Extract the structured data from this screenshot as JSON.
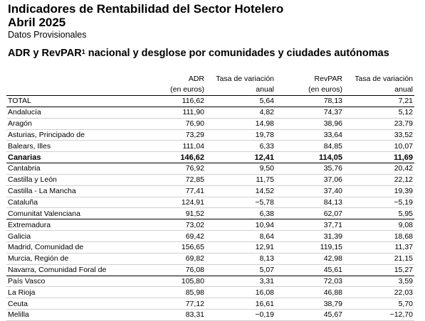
{
  "title_line1": "Indicadores de Rentabilidad del Sector Hotelero",
  "title_line2": "Abril 2025",
  "subtitle": "Datos Provisionales",
  "section_title_a": "ADR y RevPAR",
  "section_title_sup": "1",
  "section_title_b": " nacional y desglose por comunidades y ciudades autónomas",
  "headers": {
    "adr_1": "ADR",
    "adr_2": "(en euros)",
    "tasa1_1": "Tasa de variación",
    "tasa1_2": "anual",
    "revpar_1": "RevPAR",
    "revpar_2": "(en euros)",
    "tasa2_1": "Tasa de variación",
    "tasa2_2": "anual"
  },
  "rows": [
    {
      "name": "TOTAL",
      "adr": "116,62",
      "tasa_adr": "5,64",
      "revpar": "78,13",
      "tasa_revpar": "7,21",
      "bold": false,
      "sep": true
    },
    {
      "name": "Andalucía",
      "adr": "111,90",
      "tasa_adr": "4,82",
      "revpar": "74,37",
      "tasa_revpar": "5,12",
      "bold": false,
      "sep": false
    },
    {
      "name": "Aragón",
      "adr": "76,90",
      "tasa_adr": "14,98",
      "revpar": "38,96",
      "tasa_revpar": "23,79",
      "bold": false,
      "sep": false
    },
    {
      "name": "Asturias, Principado de",
      "adr": "73,29",
      "tasa_adr": "19,78",
      "revpar": "33,64",
      "tasa_revpar": "33,52",
      "bold": false,
      "sep": false
    },
    {
      "name": "Balears, Illes",
      "adr": "111,04",
      "tasa_adr": "6,33",
      "revpar": "84,85",
      "tasa_revpar": "10,07",
      "bold": false,
      "sep": false
    },
    {
      "name": "Canarias",
      "adr": "146,62",
      "tasa_adr": "12,41",
      "revpar": "114,05",
      "tasa_revpar": "11,69",
      "bold": true,
      "sep": true
    },
    {
      "name": "Cantabria",
      "adr": "76,92",
      "tasa_adr": "9,50",
      "revpar": "35,76",
      "tasa_revpar": "20,42",
      "bold": false,
      "sep": false
    },
    {
      "name": "Castilla y León",
      "adr": "72,85",
      "tasa_adr": "11,75",
      "revpar": "37,06",
      "tasa_revpar": "22,12",
      "bold": false,
      "sep": false
    },
    {
      "name": "Castilla - La Mancha",
      "adr": "77,41",
      "tasa_adr": "14,52",
      "revpar": "37,40",
      "tasa_revpar": "19,39",
      "bold": false,
      "sep": false
    },
    {
      "name": "Cataluña",
      "adr": "124,91",
      "tasa_adr": "-5,78",
      "revpar": "84,13",
      "tasa_revpar": "-5,19",
      "bold": false,
      "sep": false
    },
    {
      "name": "Comunitat Valenciana",
      "adr": "91,52",
      "tasa_adr": "6,38",
      "revpar": "62,07",
      "tasa_revpar": "5,95",
      "bold": false,
      "sep": true
    },
    {
      "name": "Extremadura",
      "adr": "73,02",
      "tasa_adr": "10,94",
      "revpar": "37,71",
      "tasa_revpar": "9,08",
      "bold": false,
      "sep": false
    },
    {
      "name": "Galicia",
      "adr": "69,42",
      "tasa_adr": "8,64",
      "revpar": "31,39",
      "tasa_revpar": "18,68",
      "bold": false,
      "sep": false
    },
    {
      "name": "Madrid, Comunidad de",
      "adr": "156,65",
      "tasa_adr": "12,91",
      "revpar": "119,15",
      "tasa_revpar": "11,37",
      "bold": false,
      "sep": false
    },
    {
      "name": "Murcia, Región de",
      "adr": "69,82",
      "tasa_adr": "8,13",
      "revpar": "42,98",
      "tasa_revpar": "21,15",
      "bold": false,
      "sep": false
    },
    {
      "name": "Navarra, Comunidad Foral de",
      "adr": "76,08",
      "tasa_adr": "5,07",
      "revpar": "45,61",
      "tasa_revpar": "15,27",
      "bold": false,
      "sep": true
    },
    {
      "name": "País Vasco",
      "adr": "105,80",
      "tasa_adr": "3,31",
      "revpar": "72,03",
      "tasa_revpar": "3,59",
      "bold": false,
      "sep": false
    },
    {
      "name": "La Rioja",
      "adr": "85,98",
      "tasa_adr": "16,08",
      "revpar": "46,88",
      "tasa_revpar": "22,03",
      "bold": false,
      "sep": false
    },
    {
      "name": "Ceuta",
      "adr": "77,12",
      "tasa_adr": "16,61",
      "revpar": "38,79",
      "tasa_revpar": "5,70",
      "bold": false,
      "sep": false
    },
    {
      "name": "Melilla",
      "adr": "83,31",
      "tasa_adr": "-0,19",
      "revpar": "45,67",
      "tasa_revpar": "-12,70",
      "bold": false,
      "sep": false
    }
  ]
}
